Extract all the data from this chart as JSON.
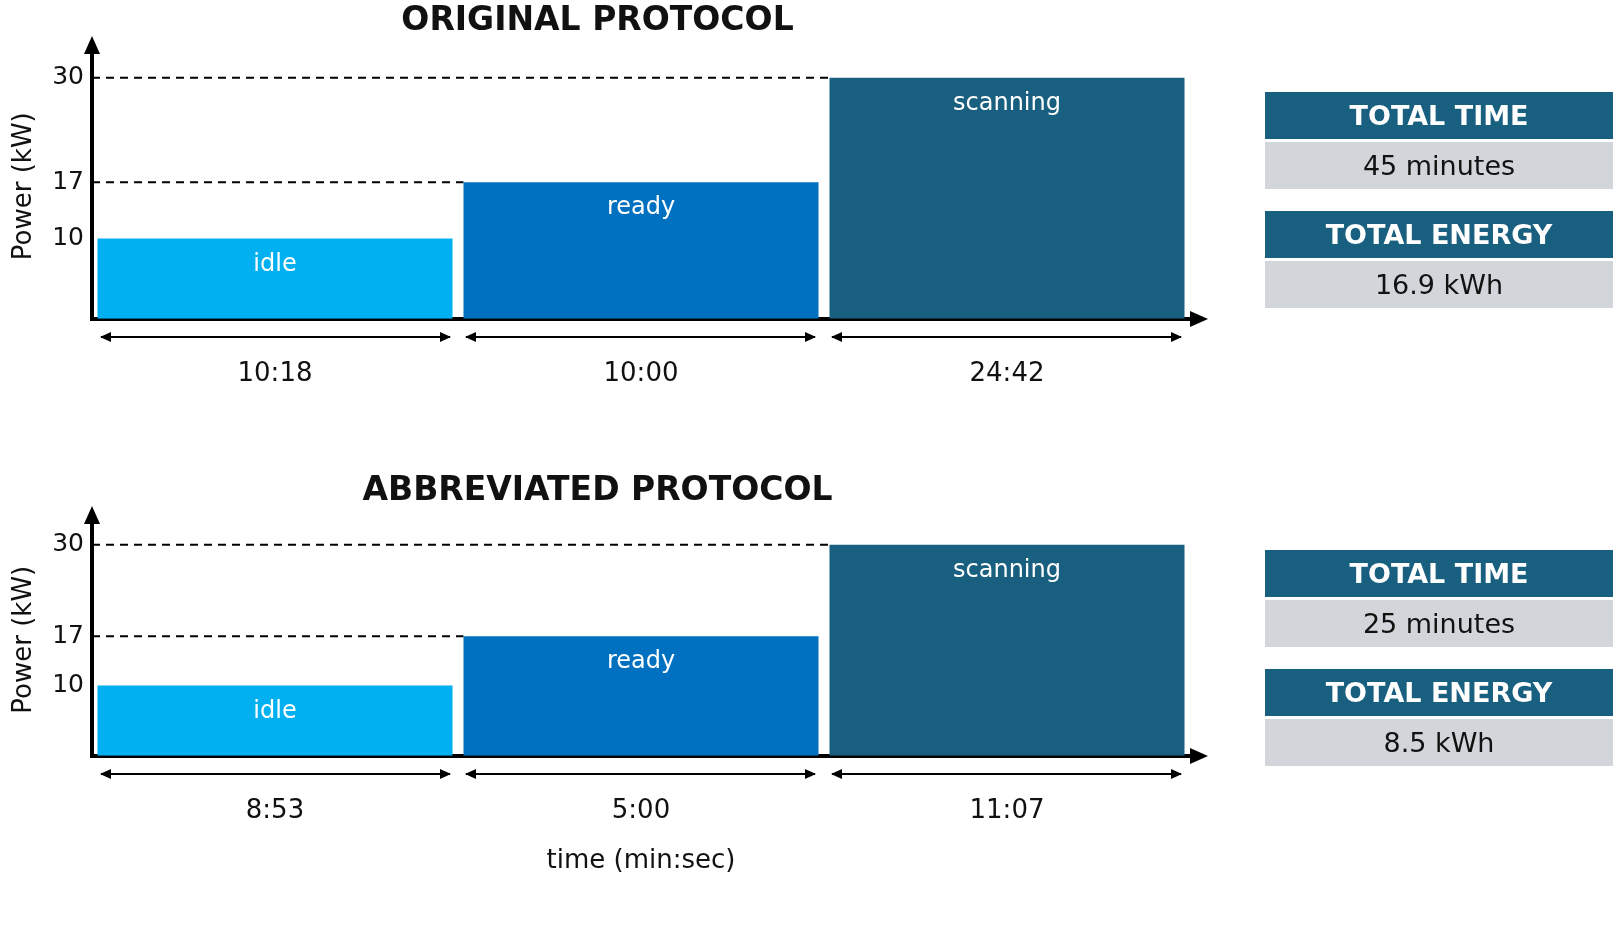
{
  "chart_data": [
    {
      "type": "bar",
      "title": "ORIGINAL PROTOCOL",
      "ylabel": "Power (kW)",
      "categories": [
        "10:18",
        "10:00",
        "24:42"
      ],
      "values": [
        10,
        17,
        30
      ],
      "colors": [
        "#00b0f0",
        "#0070c0",
        "#185f80"
      ],
      "ylim": [
        0,
        33
      ],
      "yticks": [
        10,
        17,
        30
      ],
      "grid": false,
      "legend": false,
      "ref_lines": [
        {
          "axis": "y",
          "value": 30,
          "line_style": "dashed"
        },
        {
          "axis": "y",
          "value": 17,
          "line_style": "dashed"
        }
      ],
      "annotations": [
        "idle",
        "ready",
        "scanning"
      ]
    },
    {
      "type": "other",
      "annotations": [
        "TOTAL TIME",
        "45 minutes",
        "TOTAL ENERGY",
        "16.9 kWh"
      ]
    },
    {
      "type": "bar",
      "title": "ABBREVIATED PROTOCOL",
      "ylabel": "Power (kW)",
      "xlabel": "time (min:sec)",
      "categories": [
        "8:53",
        "5:00",
        "11:07"
      ],
      "values": [
        10,
        17,
        30
      ],
      "colors": [
        "#00b0f0",
        "#0070c0",
        "#185f80"
      ],
      "ylim": [
        0,
        33
      ],
      "yticks": [
        10,
        17,
        30
      ],
      "grid": false,
      "legend": false,
      "ref_lines": [
        {
          "axis": "y",
          "value": 30,
          "line_style": "dashed"
        },
        {
          "axis": "y",
          "value": 17,
          "line_style": "dashed"
        }
      ],
      "annotations": [
        "idle",
        "ready",
        "scanning"
      ]
    },
    {
      "type": "other",
      "annotations": [
        "TOTAL TIME",
        "25 minutes",
        "TOTAL ENERGY",
        "8.5 kWh"
      ]
    }
  ]
}
